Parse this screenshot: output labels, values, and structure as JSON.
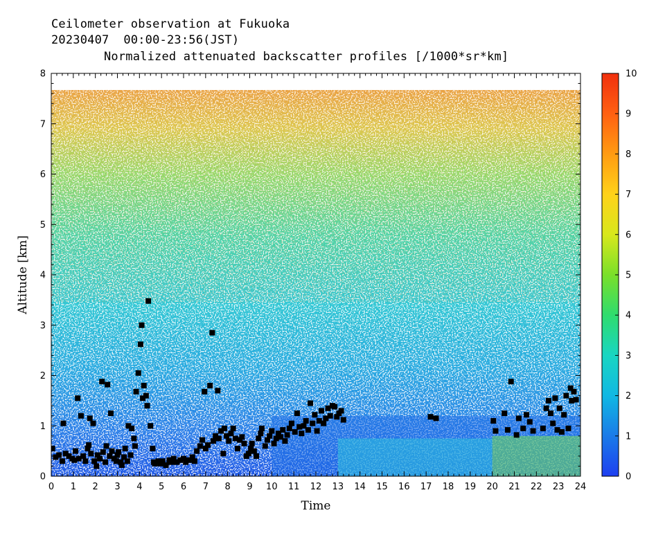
{
  "header": {
    "line1": "Ceilometer observation at Fukuoka",
    "line2": "20230407  00:00-23:56(JST)",
    "line3": "Normalized attenuated backscatter profiles [/1000*sr*km]"
  },
  "chart_data": {
    "type": "heatmap",
    "xlabel": "Time",
    "ylabel": "Altitude [km]",
    "xlim": [
      0,
      24
    ],
    "ylim": [
      0,
      8
    ],
    "xticks": [
      "0",
      "1",
      "2",
      "3",
      "4",
      "5",
      "6",
      "7",
      "8",
      "9",
      "10",
      "11",
      "12",
      "13",
      "14",
      "15",
      "16",
      "17",
      "18",
      "19",
      "20",
      "21",
      "22",
      "23",
      "24"
    ],
    "yticks": [
      "0",
      "1",
      "2",
      "3",
      "4",
      "5",
      "6",
      "7",
      "8"
    ],
    "data_top_km": 7.67,
    "colorbar": {
      "range": [
        0,
        10
      ],
      "ticks": [
        "0",
        "1",
        "2",
        "3",
        "4",
        "5",
        "6",
        "7",
        "8",
        "9",
        "10"
      ],
      "colors": [
        "#1e3ff0",
        "#1a7be8",
        "#11b8e3",
        "#19d6c2",
        "#2fdc6e",
        "#7ae02a",
        "#d8e81c",
        "#ffd21a",
        "#ff9b12",
        "#ff6012",
        "#f0300e"
      ]
    },
    "cloud_base_points": [
      [
        0.05,
        0.55
      ],
      [
        0.2,
        0.38
      ],
      [
        0.35,
        0.42
      ],
      [
        0.5,
        0.3
      ],
      [
        0.55,
        1.05
      ],
      [
        0.65,
        0.45
      ],
      [
        0.8,
        0.4
      ],
      [
        0.95,
        0.35
      ],
      [
        1.05,
        0.32
      ],
      [
        1.1,
        0.5
      ],
      [
        1.2,
        1.55
      ],
      [
        1.25,
        0.35
      ],
      [
        1.35,
        1.2
      ],
      [
        1.45,
        0.4
      ],
      [
        1.55,
        0.3
      ],
      [
        1.65,
        0.55
      ],
      [
        1.7,
        0.62
      ],
      [
        1.75,
        1.15
      ],
      [
        1.8,
        0.45
      ],
      [
        1.9,
        1.05
      ],
      [
        1.95,
        0.3
      ],
      [
        2.05,
        0.2
      ],
      [
        2.1,
        0.42
      ],
      [
        2.2,
        0.35
      ],
      [
        2.3,
        1.88
      ],
      [
        2.35,
        0.48
      ],
      [
        2.45,
        0.28
      ],
      [
        2.5,
        0.6
      ],
      [
        2.55,
        1.82
      ],
      [
        2.65,
        0.4
      ],
      [
        2.7,
        1.25
      ],
      [
        2.75,
        0.5
      ],
      [
        2.85,
        0.35
      ],
      [
        2.95,
        0.3
      ],
      [
        3.0,
        0.42
      ],
      [
        3.05,
        0.48
      ],
      [
        3.15,
        0.28
      ],
      [
        3.2,
        0.22
      ],
      [
        3.3,
        0.38
      ],
      [
        3.35,
        0.55
      ],
      [
        3.45,
        0.3
      ],
      [
        3.5,
        1.0
      ],
      [
        3.6,
        0.42
      ],
      [
        3.65,
        0.95
      ],
      [
        3.75,
        0.75
      ],
      [
        3.8,
        0.6
      ],
      [
        3.85,
        1.68
      ],
      [
        3.95,
        2.05
      ],
      [
        4.05,
        2.62
      ],
      [
        4.1,
        3.0
      ],
      [
        4.15,
        1.55
      ],
      [
        4.2,
        1.8
      ],
      [
        4.3,
        1.6
      ],
      [
        4.35,
        1.4
      ],
      [
        4.4,
        3.48
      ],
      [
        4.5,
        1.0
      ],
      [
        4.6,
        0.55
      ],
      [
        4.65,
        0.28
      ],
      [
        4.7,
        0.25
      ],
      [
        4.85,
        0.3
      ],
      [
        4.95,
        0.25
      ],
      [
        5.05,
        0.3
      ],
      [
        5.2,
        0.22
      ],
      [
        5.35,
        0.32
      ],
      [
        5.45,
        0.28
      ],
      [
        5.55,
        0.35
      ],
      [
        5.7,
        0.28
      ],
      [
        5.85,
        0.32
      ],
      [
        6.0,
        0.35
      ],
      [
        6.1,
        0.28
      ],
      [
        6.25,
        0.32
      ],
      [
        6.4,
        0.38
      ],
      [
        6.5,
        0.3
      ],
      [
        6.6,
        0.5
      ],
      [
        6.75,
        0.6
      ],
      [
        6.85,
        0.72
      ],
      [
        6.95,
        1.68
      ],
      [
        7.0,
        0.55
      ],
      [
        7.1,
        0.62
      ],
      [
        7.2,
        1.8
      ],
      [
        7.3,
        2.85
      ],
      [
        7.35,
        0.7
      ],
      [
        7.45,
        0.8
      ],
      [
        7.55,
        1.7
      ],
      [
        7.6,
        0.75
      ],
      [
        7.7,
        0.9
      ],
      [
        7.8,
        0.45
      ],
      [
        7.85,
        0.95
      ],
      [
        7.95,
        0.8
      ],
      [
        8.05,
        0.7
      ],
      [
        8.15,
        0.85
      ],
      [
        8.25,
        0.95
      ],
      [
        8.35,
        0.75
      ],
      [
        8.45,
        0.55
      ],
      [
        8.55,
        0.72
      ],
      [
        8.65,
        0.78
      ],
      [
        8.75,
        0.65
      ],
      [
        8.85,
        0.4
      ],
      [
        8.95,
        0.45
      ],
      [
        9.05,
        0.55
      ],
      [
        9.1,
        0.65
      ],
      [
        9.2,
        0.5
      ],
      [
        9.3,
        0.4
      ],
      [
        9.4,
        0.75
      ],
      [
        9.5,
        0.85
      ],
      [
        9.55,
        0.95
      ],
      [
        9.7,
        0.6
      ],
      [
        9.8,
        0.72
      ],
      [
        9.9,
        0.8
      ],
      [
        10.0,
        0.9
      ],
      [
        10.1,
        0.65
      ],
      [
        10.2,
        0.75
      ],
      [
        10.3,
        0.85
      ],
      [
        10.4,
        0.78
      ],
      [
        10.5,
        0.92
      ],
      [
        10.6,
        0.7
      ],
      [
        10.7,
        0.82
      ],
      [
        10.8,
        0.95
      ],
      [
        10.9,
        1.05
      ],
      [
        11.05,
        0.88
      ],
      [
        11.15,
        1.25
      ],
      [
        11.25,
        0.98
      ],
      [
        11.35,
        0.85
      ],
      [
        11.45,
        1.0
      ],
      [
        11.55,
        1.1
      ],
      [
        11.65,
        0.92
      ],
      [
        11.75,
        1.45
      ],
      [
        11.85,
        1.05
      ],
      [
        11.95,
        1.22
      ],
      [
        12.05,
        0.9
      ],
      [
        12.15,
        1.1
      ],
      [
        12.25,
        1.3
      ],
      [
        12.35,
        1.05
      ],
      [
        12.45,
        1.15
      ],
      [
        12.55,
        1.35
      ],
      [
        12.65,
        1.2
      ],
      [
        12.75,
        1.4
      ],
      [
        12.85,
        1.38
      ],
      [
        12.95,
        1.18
      ],
      [
        13.05,
        1.25
      ],
      [
        13.15,
        1.3
      ],
      [
        13.25,
        1.12
      ],
      [
        17.2,
        1.18
      ],
      [
        17.45,
        1.15
      ],
      [
        20.05,
        1.1
      ],
      [
        20.15,
        0.9
      ],
      [
        20.55,
        1.25
      ],
      [
        20.7,
        0.92
      ],
      [
        20.85,
        1.88
      ],
      [
        21.1,
        0.82
      ],
      [
        21.2,
        1.15
      ],
      [
        21.4,
        0.95
      ],
      [
        21.55,
        1.22
      ],
      [
        21.7,
        1.08
      ],
      [
        21.85,
        0.9
      ],
      [
        22.3,
        0.95
      ],
      [
        22.45,
        1.35
      ],
      [
        22.55,
        1.5
      ],
      [
        22.65,
        1.25
      ],
      [
        22.75,
        1.05
      ],
      [
        22.85,
        1.55
      ],
      [
        22.95,
        0.92
      ],
      [
        23.05,
        1.35
      ],
      [
        23.15,
        0.88
      ],
      [
        23.25,
        1.22
      ],
      [
        23.35,
        1.6
      ],
      [
        23.45,
        0.95
      ],
      [
        23.55,
        1.75
      ],
      [
        23.6,
        1.5
      ],
      [
        23.7,
        1.68
      ],
      [
        23.8,
        1.52
      ]
    ]
  }
}
